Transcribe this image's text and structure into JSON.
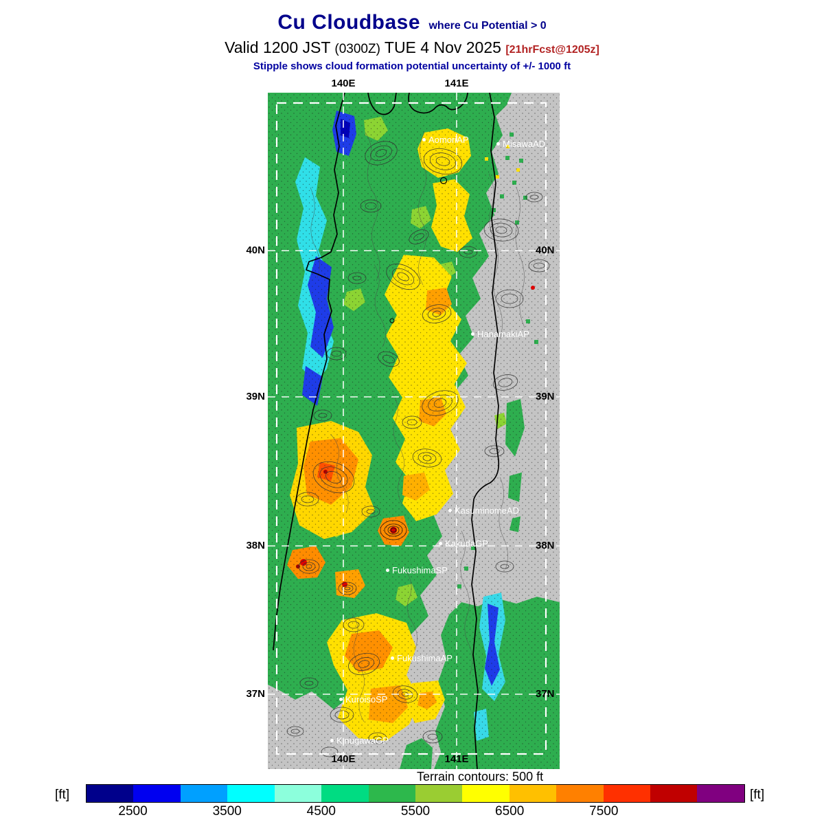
{
  "header": {
    "title": "Cu Cloudbase",
    "title_qualifier": "where Cu Potential > 0",
    "valid_prefix": "Valid 1200 JST",
    "valid_zulu": "(0300Z)",
    "valid_date": "TUE 4 Nov 2025",
    "fcst_tag": "[21hrFcst@1205z]",
    "stipple_note": "Stipple shows cloud formation potential uncertainty of +/- 1000 ft"
  },
  "map": {
    "lon_labels": [
      "140E",
      "141E"
    ],
    "lat_labels": [
      "40N",
      "39N",
      "38N",
      "37N"
    ],
    "stations": [
      {
        "name": "AomoriAP"
      },
      {
        "name": "MisawaAD"
      },
      {
        "name": "HanamakiAP"
      },
      {
        "name": "KasuminomeAD"
      },
      {
        "name": "KakudaGP"
      },
      {
        "name": "FukushimaSP"
      },
      {
        "name": "FukushimaAP"
      },
      {
        "name": "KuroisoSP"
      },
      {
        "name": "KinugawaGP"
      }
    ]
  },
  "footer": {
    "terrain_note": "Terrain contours: 500 ft",
    "colorbar": {
      "unit_left": "[ft]",
      "unit_right": "[ft]",
      "ticks": [
        "2500",
        "3500",
        "4500",
        "5500",
        "6500",
        "7500"
      ],
      "colors": [
        "#00008B",
        "#0000F0",
        "#00A0FF",
        "#00FFFF",
        "#8CFFDC",
        "#00DC82",
        "#2DB84C",
        "#9ACD32",
        "#FFFF00",
        "#FFC000",
        "#FF8000",
        "#FF3000",
        "#C00000",
        "#800080"
      ],
      "status_colors": {
        "low": "#00008B",
        "mid": "#FFFF00",
        "high": "#800080"
      }
    }
  }
}
